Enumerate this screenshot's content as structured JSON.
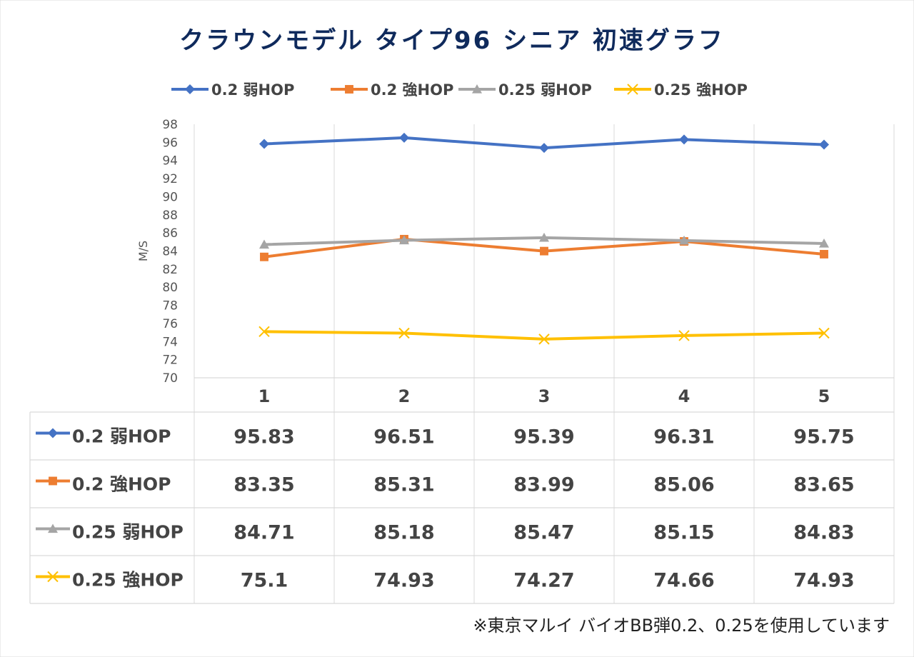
{
  "chart_data": {
    "type": "line",
    "title": "クラウンモデル タイプ96 シニア 初速グラフ",
    "ylabel": "M/S",
    "xlabel": "",
    "categories": [
      "1",
      "2",
      "3",
      "4",
      "5"
    ],
    "ylim": [
      70,
      98
    ],
    "ytick_step": 2,
    "grid": "vertical",
    "legend_position": "top",
    "data_table": true,
    "series": [
      {
        "name": "0.2 弱HOP",
        "values": [
          95.83,
          96.51,
          95.39,
          96.31,
          95.75
        ],
        "labels": [
          "95.83",
          "96.51",
          "95.39",
          "96.31",
          "95.75"
        ],
        "color": "#4472c4",
        "marker": "diamond"
      },
      {
        "name": "0.2 強HOP",
        "values": [
          83.35,
          85.31,
          83.99,
          85.06,
          83.65
        ],
        "labels": [
          "83.35",
          "85.31",
          "83.99",
          "85.06",
          "83.65"
        ],
        "color": "#ed7d31",
        "marker": "square"
      },
      {
        "name": "0.25 弱HOP",
        "values": [
          84.71,
          85.18,
          85.47,
          85.15,
          84.83
        ],
        "labels": [
          "84.71",
          "85.18",
          "85.47",
          "85.15",
          "84.83"
        ],
        "color": "#a5a5a5",
        "marker": "triangle"
      },
      {
        "name": "0.25 強HOP",
        "values": [
          75.1,
          74.93,
          74.27,
          74.66,
          74.93
        ],
        "labels": [
          "75.1",
          "74.93",
          "74.27",
          "74.66",
          "74.93"
        ],
        "color": "#ffc000",
        "marker": "x"
      }
    ]
  },
  "footnote": "※東京マルイ バイオBB弾0.2、0.25を使用しています"
}
